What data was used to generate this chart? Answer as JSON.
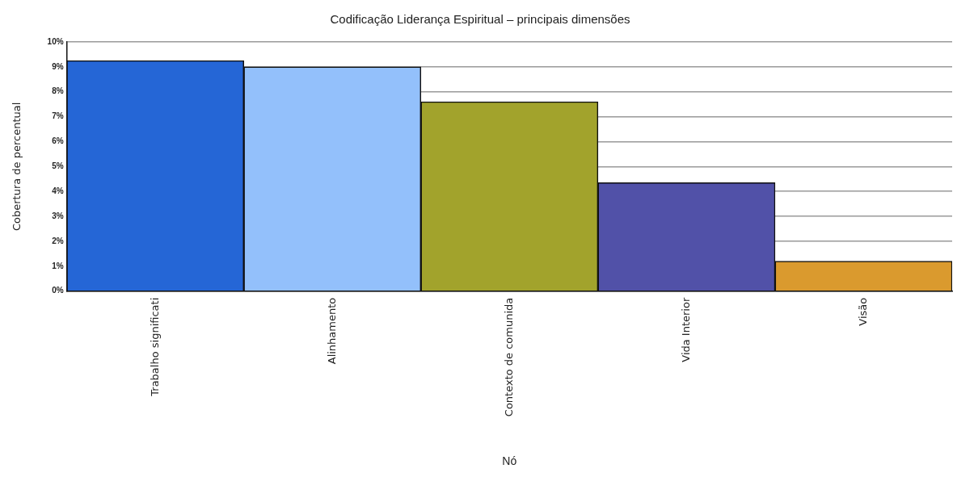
{
  "chart_data": {
    "type": "bar",
    "title": "Codificação Liderança Espiritual – principais dimensões",
    "xlabel": "Nó",
    "ylabel": "Cobertura de percentual",
    "categories": [
      "Trabalho significati",
      "Alinhamento",
      "Contexto de comunida",
      "Vida Interior",
      "Visão"
    ],
    "values": [
      9.25,
      9.0,
      7.6,
      4.35,
      1.2
    ],
    "colors": [
      "#2566d6",
      "#93c0fb",
      "#a2a32c",
      "#5151a8",
      "#da9a2e"
    ],
    "ylim": [
      0,
      10
    ],
    "yticks": [
      {
        "value": 0,
        "label": "0%"
      },
      {
        "value": 1,
        "label": "1%"
      },
      {
        "value": 2,
        "label": "2%"
      },
      {
        "value": 3,
        "label": "3%"
      },
      {
        "value": 4,
        "label": "4%"
      },
      {
        "value": 5,
        "label": "5%"
      },
      {
        "value": 6,
        "label": "6%"
      },
      {
        "value": 7,
        "label": "7%"
      },
      {
        "value": 8,
        "label": "8%"
      },
      {
        "value": 9,
        "label": "9%"
      },
      {
        "value": 10,
        "label": "10%"
      }
    ],
    "grid": "y",
    "legend": false
  }
}
